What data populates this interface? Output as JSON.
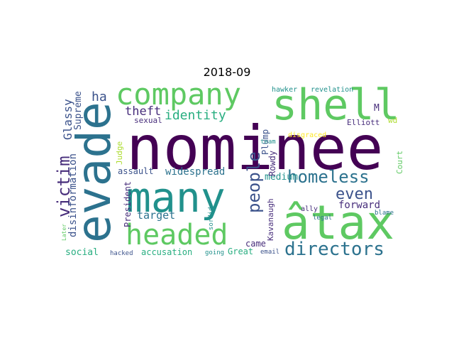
{
  "title": "2018-09",
  "colors": {
    "dark_purple": "#440154",
    "purple": "#472d7b",
    "indigo": "#3b528b",
    "blue": "#2c728e",
    "teal": "#21918c",
    "green": "#28ae80",
    "light_green": "#5ec962",
    "yellow_green": "#addc30",
    "yellow": "#fde725"
  },
  "words": [
    {
      "text": "nominee",
      "color": "#440154"
    },
    {
      "text": "evade",
      "color": "#2c728e"
    },
    {
      "text": "many",
      "color": "#21918c"
    },
    {
      "text": "âtax",
      "color": "#5ec962"
    },
    {
      "text": "shell",
      "color": "#5ec962"
    },
    {
      "text": "company",
      "color": "#5ec962"
    },
    {
      "text": "headed",
      "color": "#5ec962"
    },
    {
      "text": "directors",
      "color": "#2c728e"
    },
    {
      "text": "homeless",
      "color": "#2c728e"
    },
    {
      "text": "people",
      "color": "#3b528b"
    },
    {
      "text": "victim",
      "color": "#472d7b"
    },
    {
      "text": "even",
      "color": "#3b528b"
    },
    {
      "text": "identity",
      "color": "#28ae80"
    },
    {
      "text": "theft",
      "color": "#472d7b"
    },
    {
      "text": "ha",
      "color": "#3b528b"
    },
    {
      "text": "Glassy",
      "color": "#3b528b"
    },
    {
      "text": "Supreme",
      "color": "#3b528b"
    },
    {
      "text": "disinformation",
      "color": "#3b528b"
    },
    {
      "text": "widespread",
      "color": "#2c728e"
    },
    {
      "text": "target",
      "color": "#2c728e"
    },
    {
      "text": "forward",
      "color": "#472d7b"
    },
    {
      "text": "medium",
      "color": "#21918c"
    },
    {
      "text": "social",
      "color": "#28ae80"
    },
    {
      "text": "accusation",
      "color": "#28ae80"
    },
    {
      "text": "assault",
      "color": "#3b528b"
    },
    {
      "text": "sexual",
      "color": "#472d7b"
    },
    {
      "text": "Judge",
      "color": "#addc30"
    },
    {
      "text": "President",
      "color": "#472d7b"
    },
    {
      "text": "Kavanaugh",
      "color": "#472d7b"
    },
    {
      "text": "Plump",
      "color": "#3b528b"
    },
    {
      "text": "Rowdy",
      "color": "#472d7b"
    },
    {
      "text": "came",
      "color": "#472d7b"
    },
    {
      "text": "Great",
      "color": "#28ae80"
    },
    {
      "text": "Court",
      "color": "#5ec962"
    },
    {
      "text": "Elliott",
      "color": "#472d7b"
    },
    {
      "text": "M",
      "color": "#472d7b"
    },
    {
      "text": "hawker",
      "color": "#21918c"
    },
    {
      "text": "revelation",
      "color": "#21918c"
    },
    {
      "text": "disgraced",
      "color": "#fde725"
    },
    {
      "text": "team",
      "color": "#21918c"
    },
    {
      "text": "ally",
      "color": "#472d7b"
    },
    {
      "text": "legal",
      "color": "#2c728e"
    },
    {
      "text": "blame",
      "color": "#2c728e"
    },
    {
      "text": "wd",
      "color": "#addc30"
    },
    {
      "text": "sordid",
      "color": "#21918c"
    },
    {
      "text": "Later",
      "color": "#5ec962"
    },
    {
      "text": "hacked",
      "color": "#3b528b"
    },
    {
      "text": "going",
      "color": "#21918c"
    },
    {
      "text": "email",
      "color": "#3b528b"
    }
  ]
}
